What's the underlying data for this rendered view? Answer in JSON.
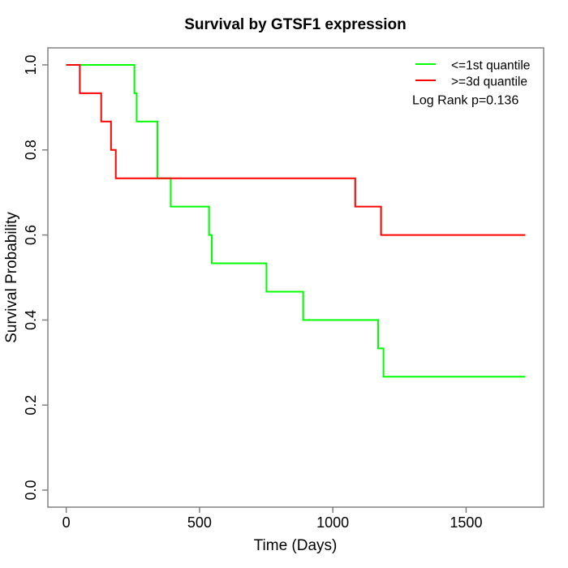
{
  "chart_data": {
    "type": "line",
    "subtype": "kaplan-meier-step",
    "title": "Survival by GTSF1 expression",
    "xlabel": "Time (Days)",
    "ylabel": "Survival Probability",
    "xlim": [
      0,
      1722
    ],
    "ylim": [
      0.0,
      1.0
    ],
    "axis_padding_fraction": 0.04,
    "grid": false,
    "xticks": [
      0,
      500,
      1000,
      1500
    ],
    "xtick_labels": [
      "0",
      "500",
      "1000",
      "1500"
    ],
    "yticks": [
      0.0,
      0.2,
      0.4,
      0.6,
      0.8,
      1.0
    ],
    "ytick_labels": [
      "0.0",
      "0.2",
      "0.4",
      "0.6",
      "0.8",
      "1.0"
    ],
    "legend": {
      "position": "top-right",
      "entries": [
        {
          "label": "<=1st quantile",
          "color": "#00ff00"
        },
        {
          "label": ">=3d quantile",
          "color": "#ff0000"
        }
      ]
    },
    "annotation": "Log Rank p=0.136",
    "series": [
      {
        "name": "<=1st quantile",
        "color": "#00ff00",
        "step": true,
        "points": [
          [
            0,
            1.0
          ],
          [
            256,
            0.9333
          ],
          [
            264,
            0.8667
          ],
          [
            342,
            0.7333
          ],
          [
            392,
            0.6667
          ],
          [
            536,
            0.6
          ],
          [
            546,
            0.5333
          ],
          [
            751,
            0.4667
          ],
          [
            889,
            0.4
          ],
          [
            1170,
            0.3333
          ],
          [
            1190,
            0.2667
          ],
          [
            1722,
            0.2667
          ]
        ]
      },
      {
        "name": ">=3d quantile",
        "color": "#ff0000",
        "step": true,
        "points": [
          [
            0,
            1.0
          ],
          [
            51,
            0.9333
          ],
          [
            131,
            0.8667
          ],
          [
            168,
            0.8
          ],
          [
            186,
            0.7333
          ],
          [
            1084,
            0.6667
          ],
          [
            1181,
            0.6
          ],
          [
            1722,
            0.6
          ]
        ]
      }
    ],
    "colors": {
      "axis": "#808080",
      "text": "#000000",
      "background": "#ffffff"
    }
  }
}
